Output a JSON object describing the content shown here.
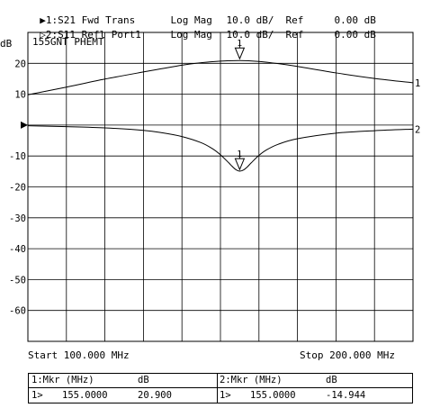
{
  "header": {
    "channels": [
      {
        "marker_symbol": "▶1",
        "name": ":S21 Fwd Trans",
        "format": "Log Mag",
        "scale": "10.0 dB/",
        "ref_label": "Ref",
        "ref_value": "0.00 dB"
      },
      {
        "marker_symbol": "▷2",
        "name": ":S11 Refl Port1",
        "format": "Log Mag",
        "scale": "10.0 dB/",
        "ref_label": "Ref",
        "ref_value": "0.00 dB"
      }
    ]
  },
  "plot": {
    "unit": "dB",
    "title": "155GNT PHEMT",
    "start_label": "Start 100.000 MHz",
    "stop_label": "Stop 200.000 MHz"
  },
  "chart_data": {
    "type": "line",
    "title": "155GNT PHEMT",
    "ylabel": "dB",
    "xlabel": "",
    "xlim": [
      100,
      200
    ],
    "ylim": [
      -70,
      30
    ],
    "yticks": [
      20,
      10,
      0,
      -10,
      -20,
      -30,
      -40,
      -50,
      -60
    ],
    "ytick_labels": [
      "20",
      "10",
      "",
      "-10",
      "-20",
      "-30",
      "-40",
      "-50",
      "-60"
    ],
    "grid": true,
    "series": [
      {
        "name": "1",
        "x": [
          100,
          110,
          120,
          130,
          140,
          145,
          150,
          155,
          160,
          165,
          170,
          180,
          190,
          200
        ],
        "y": [
          9.8,
          12.3,
          14.9,
          17.2,
          19.4,
          20.2,
          20.7,
          20.9,
          20.6,
          19.9,
          19.0,
          16.9,
          15.1,
          13.7
        ]
      },
      {
        "name": "2",
        "x": [
          100,
          110,
          120,
          130,
          135,
          140,
          145,
          148,
          150,
          152,
          153,
          154,
          155,
          156,
          157,
          158,
          160,
          162,
          165,
          170,
          180,
          190,
          200
        ],
        "y": [
          -0.2,
          -0.5,
          -0.9,
          -1.7,
          -2.5,
          -3.7,
          -5.7,
          -7.7,
          -9.6,
          -12.0,
          -13.3,
          -14.4,
          -14.9,
          -14.5,
          -13.5,
          -12.2,
          -9.8,
          -8.0,
          -6.2,
          -4.4,
          -2.6,
          -1.8,
          -1.3
        ]
      }
    ],
    "markers": [
      {
        "label": "1",
        "series": "1",
        "x": 155,
        "y": 20.9
      },
      {
        "label": "1",
        "series": "2",
        "x": 155,
        "y": -14.944
      }
    ],
    "reference_level": 0
  },
  "marker_table": {
    "left": {
      "head_a": "1:Mkr (MHz)",
      "head_b": "dB",
      "row_marker": "1>",
      "freq": "155.0000",
      "value": "20.900"
    },
    "right": {
      "head_a": "2:Mkr (MHz)",
      "head_b": "dB",
      "row_marker": "1>",
      "freq": "155.0000",
      "value": "-14.944"
    }
  }
}
